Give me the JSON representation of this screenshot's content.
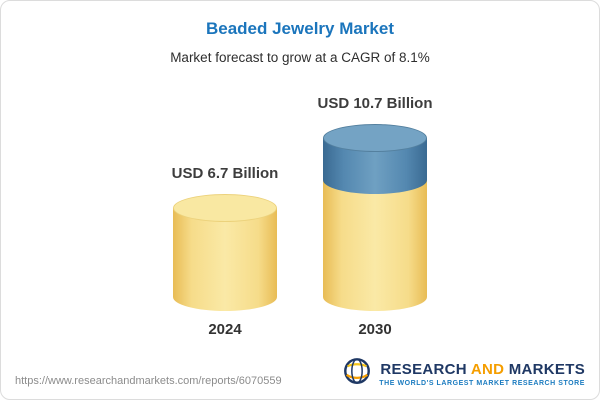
{
  "header": {
    "title": "Beaded Jewelry Market",
    "subtitle": "Market forecast to grow at a CAGR of 8.1%"
  },
  "chart_data": {
    "type": "bar",
    "subtype": "3d-cylinder",
    "title": "Beaded Jewelry Market",
    "subtitle": "Market forecast to grow at a CAGR of 8.1%",
    "cagr_pct": 8.1,
    "categories": [
      "2024",
      "2030"
    ],
    "values": [
      6.7,
      10.7
    ],
    "value_labels": [
      "USD 6.7 Billion",
      "USD 10.7 Billion"
    ],
    "unit": "USD Billion",
    "ylim": [
      0,
      12
    ],
    "grid": false,
    "legend": "none",
    "colors": {
      "base_segment": "#f6d77b",
      "growth_segment": "#4e81a8",
      "title_blue": "#1b75bc"
    }
  },
  "footer": {
    "url": "https://www.researchandmarkets.com/reports/6070559",
    "logo": {
      "word1": "RESEARCH",
      "word2": "AND",
      "word3": "MARKETS",
      "tagline": "THE WORLD'S LARGEST MARKET RESEARCH STORE",
      "colors": {
        "navy": "#1f3864",
        "orange": "#f59e00",
        "tagline_blue": "#1c7cc0"
      }
    }
  }
}
